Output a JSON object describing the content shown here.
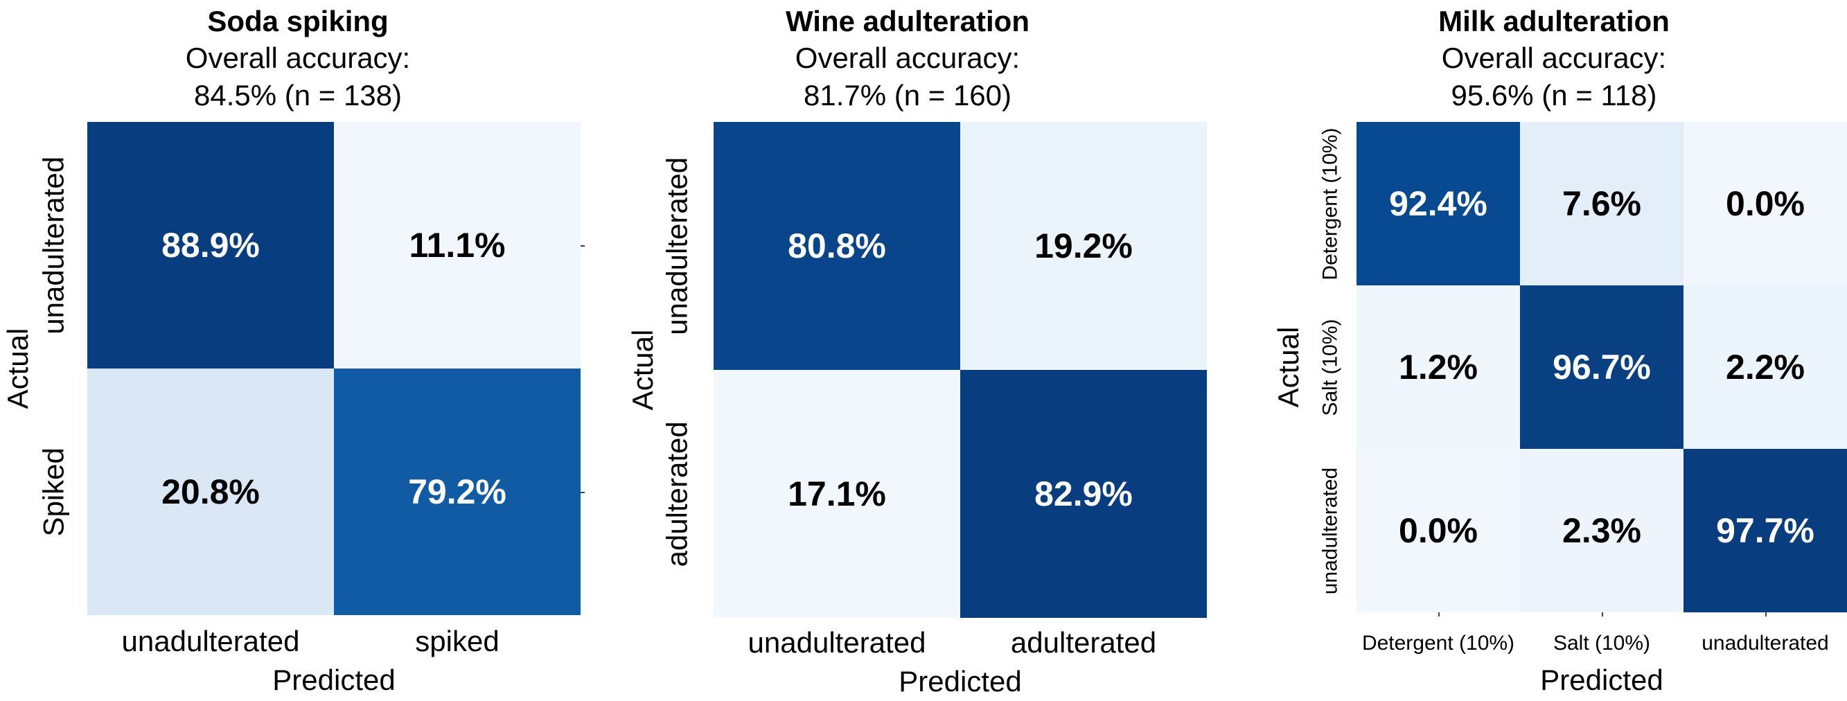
{
  "chart_data": [
    {
      "type": "heatmap",
      "title": "Soda spiking",
      "subtitle_line1": "Overall accuracy:",
      "subtitle_line2": "84.5% (n = 138)",
      "xlabel": "Predicted",
      "ylabel": "Actual",
      "x_categories": [
        "unadulterated",
        "spiked"
      ],
      "y_categories": [
        "unadulterated",
        "Spiked"
      ],
      "values": [
        [
          88.9,
          11.1
        ],
        [
          20.8,
          79.2
        ]
      ],
      "cell_labels": [
        [
          "88.9%",
          "11.1%"
        ],
        [
          "20.8%",
          "79.2%"
        ]
      ],
      "colormap": "Blues"
    },
    {
      "type": "heatmap",
      "title": "Wine adulteration",
      "subtitle_line1": "Overall accuracy:",
      "subtitle_line2": "81.7% (n = 160)",
      "xlabel": "Predicted",
      "ylabel": "Actual",
      "x_categories": [
        "unadulterated",
        "adulterated"
      ],
      "y_categories": [
        "unadulterated",
        "adulterated"
      ],
      "values": [
        [
          80.8,
          19.2
        ],
        [
          17.1,
          82.9
        ]
      ],
      "cell_labels": [
        [
          "80.8%",
          "19.2%"
        ],
        [
          "17.1%",
          "82.9%"
        ]
      ],
      "colormap": "Blues"
    },
    {
      "type": "heatmap",
      "title": "Milk adulteration",
      "subtitle_line1": "Overall accuracy:",
      "subtitle_line2": "95.6% (n = 118)",
      "xlabel": "Predicted",
      "ylabel": "Actual",
      "x_categories": [
        "Detergent (10%)",
        "Salt (10%)",
        "unadulterated"
      ],
      "y_categories": [
        "Detergent (10%)",
        "Salt (10%)",
        "unadulterated"
      ],
      "values": [
        [
          92.4,
          7.6,
          0.0
        ],
        [
          1.2,
          96.7,
          2.2
        ],
        [
          0.0,
          2.3,
          97.7
        ]
      ],
      "cell_labels": [
        [
          "92.4%",
          "7.6%",
          "0.0%"
        ],
        [
          "1.2%",
          "96.7%",
          "2.2%"
        ],
        [
          "0.0%",
          "2.3%",
          "97.7%"
        ]
      ],
      "colormap": "Blues"
    }
  ]
}
